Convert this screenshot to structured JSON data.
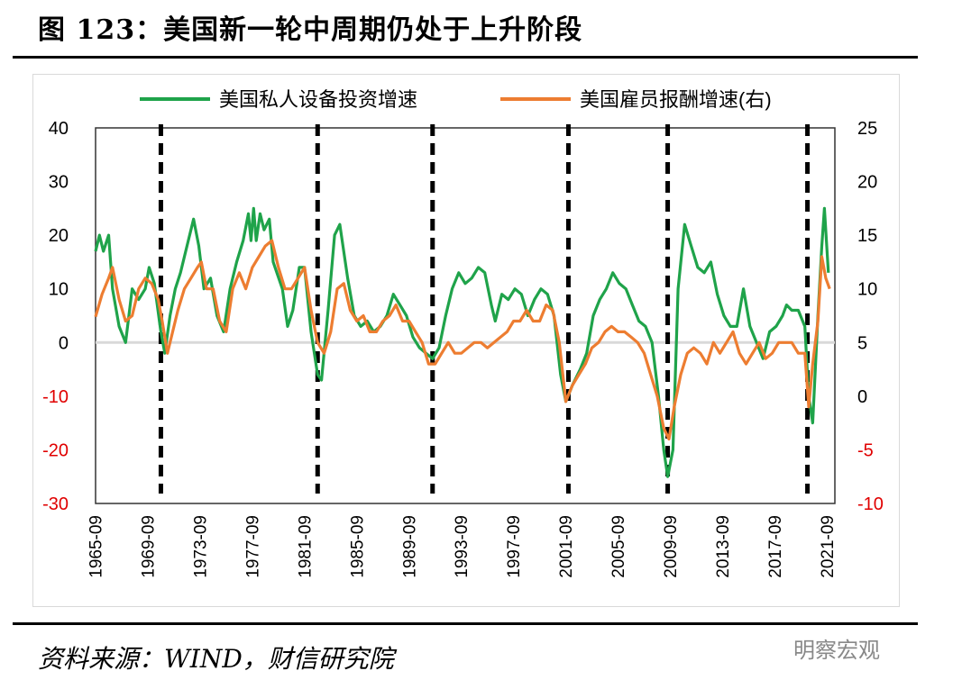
{
  "header": {
    "title": "图 123：美国新一轮中周期仍处于上升阶段"
  },
  "footer": {
    "source": "资料来源：WIND，财信研究院",
    "watermark": "明察宏观"
  },
  "chart_data": {
    "type": "line",
    "title": "图 123：美国新一轮中周期仍处于上升阶段",
    "x_range": [
      1965.7,
      2022.3
    ],
    "x_tick_labels": [
      "1965-09",
      "1969-09",
      "1973-09",
      "1977-09",
      "1981-09",
      "1985-09",
      "1989-09",
      "1993-09",
      "1997-09",
      "2001-09",
      "2005-09",
      "2009-09",
      "2013-09",
      "2017-09",
      "2021-09"
    ],
    "y_left": {
      "range": [
        -30,
        40
      ],
      "ticks": [
        40,
        30,
        20,
        10,
        0,
        -10,
        -20,
        -30
      ]
    },
    "y_right": {
      "range": [
        -10,
        25
      ],
      "ticks": [
        25,
        20,
        15,
        10,
        5,
        0,
        -5,
        -10
      ]
    },
    "cycle_markers": [
      1970.7,
      1982.7,
      1991.5,
      2001.9,
      2009.5,
      2020.2
    ],
    "legend_position": "top",
    "colors": {
      "equipment": "#1fa34a",
      "compensation": "#ed7d31",
      "dashed": "#000000",
      "zero_line": "#d9d9d9"
    },
    "series": [
      {
        "name": "美国私人设备投资增速",
        "axis": "left",
        "color": "#1fa34a",
        "points": [
          [
            1965.7,
            17
          ],
          [
            1966.0,
            20
          ],
          [
            1966.3,
            17
          ],
          [
            1966.7,
            20
          ],
          [
            1967.0,
            10
          ],
          [
            1967.5,
            3
          ],
          [
            1968.0,
            0
          ],
          [
            1968.5,
            10
          ],
          [
            1969.0,
            8
          ],
          [
            1969.5,
            10
          ],
          [
            1969.8,
            14
          ],
          [
            1970.2,
            11
          ],
          [
            1970.7,
            2
          ],
          [
            1971.0,
            -2
          ],
          [
            1971.4,
            5
          ],
          [
            1971.8,
            10
          ],
          [
            1972.2,
            13
          ],
          [
            1972.7,
            18
          ],
          [
            1973.2,
            23
          ],
          [
            1973.6,
            18
          ],
          [
            1974.0,
            10
          ],
          [
            1974.5,
            12
          ],
          [
            1975.0,
            5
          ],
          [
            1975.5,
            2
          ],
          [
            1976.0,
            10
          ],
          [
            1976.5,
            15
          ],
          [
            1977.0,
            19
          ],
          [
            1977.4,
            24
          ],
          [
            1977.6,
            19
          ],
          [
            1977.8,
            25
          ],
          [
            1978.0,
            19
          ],
          [
            1978.3,
            24
          ],
          [
            1978.6,
            21
          ],
          [
            1979.0,
            23
          ],
          [
            1979.3,
            15
          ],
          [
            1980.0,
            10
          ],
          [
            1980.4,
            3
          ],
          [
            1980.8,
            6
          ],
          [
            1981.3,
            14
          ],
          [
            1981.7,
            14
          ],
          [
            1982.2,
            2
          ],
          [
            1982.7,
            -6
          ],
          [
            1983.0,
            -7
          ],
          [
            1983.5,
            6
          ],
          [
            1984.0,
            20
          ],
          [
            1984.4,
            22
          ],
          [
            1985.0,
            12
          ],
          [
            1985.5,
            5
          ],
          [
            1986.0,
            3
          ],
          [
            1986.5,
            4
          ],
          [
            1987.0,
            2
          ],
          [
            1987.5,
            3
          ],
          [
            1988.0,
            5
          ],
          [
            1988.5,
            9
          ],
          [
            1989.0,
            7
          ],
          [
            1989.5,
            5
          ],
          [
            1990.0,
            1
          ],
          [
            1990.5,
            -1
          ],
          [
            1991.0,
            -2
          ],
          [
            1991.5,
            -3
          ],
          [
            1992.0,
            -1
          ],
          [
            1992.5,
            5
          ],
          [
            1993.0,
            10
          ],
          [
            1993.5,
            13
          ],
          [
            1994.0,
            11
          ],
          [
            1994.5,
            12
          ],
          [
            1995.0,
            14
          ],
          [
            1995.5,
            13
          ],
          [
            1996.0,
            7
          ],
          [
            1996.3,
            4
          ],
          [
            1996.8,
            9
          ],
          [
            1997.3,
            8
          ],
          [
            1997.8,
            10
          ],
          [
            1998.3,
            9
          ],
          [
            1998.8,
            5
          ],
          [
            1999.3,
            8
          ],
          [
            1999.8,
            10
          ],
          [
            2000.3,
            9
          ],
          [
            2000.8,
            5
          ],
          [
            2001.3,
            -6
          ],
          [
            2001.7,
            -11
          ],
          [
            2002.2,
            -8
          ],
          [
            2002.8,
            -5
          ],
          [
            2003.3,
            -2
          ],
          [
            2003.8,
            5
          ],
          [
            2004.3,
            8
          ],
          [
            2004.8,
            10
          ],
          [
            2005.3,
            13
          ],
          [
            2005.8,
            11
          ],
          [
            2006.3,
            10
          ],
          [
            2006.8,
            7
          ],
          [
            2007.3,
            4
          ],
          [
            2007.8,
            3
          ],
          [
            2008.3,
            0
          ],
          [
            2008.8,
            -10
          ],
          [
            2009.2,
            -20
          ],
          [
            2009.5,
            -25
          ],
          [
            2009.9,
            -20
          ],
          [
            2010.3,
            10
          ],
          [
            2010.8,
            22
          ],
          [
            2011.3,
            18
          ],
          [
            2011.8,
            14
          ],
          [
            2012.3,
            13
          ],
          [
            2012.8,
            15
          ],
          [
            2013.3,
            9
          ],
          [
            2013.8,
            5
          ],
          [
            2014.3,
            3
          ],
          [
            2014.8,
            3
          ],
          [
            2015.3,
            10
          ],
          [
            2015.8,
            3
          ],
          [
            2016.3,
            0
          ],
          [
            2016.8,
            -3
          ],
          [
            2017.3,
            2
          ],
          [
            2017.8,
            3
          ],
          [
            2018.3,
            5
          ],
          [
            2018.6,
            7
          ],
          [
            2019.0,
            6
          ],
          [
            2019.5,
            6
          ],
          [
            2020.0,
            3
          ],
          [
            2020.3,
            -10
          ],
          [
            2020.6,
            -15
          ],
          [
            2021.0,
            5
          ],
          [
            2021.3,
            18
          ],
          [
            2021.5,
            25
          ],
          [
            2021.8,
            13
          ]
        ]
      },
      {
        "name": "美国雇员报酬增速(右)",
        "axis": "right",
        "color": "#ed7d31",
        "points": [
          [
            1965.7,
            7.4
          ],
          [
            1966.2,
            9.5
          ],
          [
            1966.7,
            11
          ],
          [
            1967.0,
            12
          ],
          [
            1967.5,
            9
          ],
          [
            1968.0,
            7
          ],
          [
            1968.5,
            7.5
          ],
          [
            1969.0,
            10
          ],
          [
            1969.5,
            11
          ],
          [
            1970.0,
            10.5
          ],
          [
            1970.5,
            9
          ],
          [
            1970.8,
            7
          ],
          [
            1971.2,
            4
          ],
          [
            1971.6,
            6
          ],
          [
            1972.0,
            8
          ],
          [
            1972.5,
            10
          ],
          [
            1973.0,
            11
          ],
          [
            1973.5,
            12
          ],
          [
            1973.8,
            12.5
          ],
          [
            1974.2,
            10
          ],
          [
            1974.7,
            10
          ],
          [
            1975.2,
            7
          ],
          [
            1975.7,
            6
          ],
          [
            1976.2,
            10
          ],
          [
            1976.7,
            11.5
          ],
          [
            1977.2,
            10
          ],
          [
            1977.7,
            12
          ],
          [
            1978.2,
            13
          ],
          [
            1978.7,
            14
          ],
          [
            1979.2,
            14.5
          ],
          [
            1979.7,
            12
          ],
          [
            1980.2,
            10
          ],
          [
            1980.7,
            10
          ],
          [
            1981.2,
            11
          ],
          [
            1981.7,
            12
          ],
          [
            1982.2,
            8
          ],
          [
            1982.7,
            5
          ],
          [
            1983.2,
            4
          ],
          [
            1983.7,
            6
          ],
          [
            1984.2,
            10
          ],
          [
            1984.7,
            10.5
          ],
          [
            1985.2,
            8
          ],
          [
            1985.7,
            7
          ],
          [
            1986.2,
            7.5
          ],
          [
            1986.7,
            6
          ],
          [
            1987.2,
            6
          ],
          [
            1987.7,
            7
          ],
          [
            1988.2,
            7.5
          ],
          [
            1988.7,
            8.5
          ],
          [
            1989.2,
            7
          ],
          [
            1989.7,
            7
          ],
          [
            1990.2,
            6
          ],
          [
            1990.7,
            5
          ],
          [
            1991.2,
            3
          ],
          [
            1991.7,
            3
          ],
          [
            1992.2,
            4
          ],
          [
            1992.7,
            5
          ],
          [
            1993.2,
            4
          ],
          [
            1993.7,
            4
          ],
          [
            1994.2,
            4.5
          ],
          [
            1994.7,
            5
          ],
          [
            1995.2,
            5
          ],
          [
            1995.7,
            4.5
          ],
          [
            1996.2,
            5
          ],
          [
            1996.7,
            5.5
          ],
          [
            1997.2,
            6
          ],
          [
            1997.7,
            7
          ],
          [
            1998.2,
            7
          ],
          [
            1998.7,
            8
          ],
          [
            1999.2,
            7
          ],
          [
            1999.7,
            7
          ],
          [
            2000.2,
            8.5
          ],
          [
            2000.7,
            8
          ],
          [
            2001.2,
            5
          ],
          [
            2001.7,
            -0.5
          ],
          [
            2002.2,
            1
          ],
          [
            2002.7,
            2
          ],
          [
            2003.2,
            3
          ],
          [
            2003.7,
            4.5
          ],
          [
            2004.2,
            5
          ],
          [
            2004.7,
            6
          ],
          [
            2005.2,
            6.5
          ],
          [
            2005.7,
            6
          ],
          [
            2006.2,
            6
          ],
          [
            2006.7,
            5.5
          ],
          [
            2007.2,
            5
          ],
          [
            2007.7,
            4
          ],
          [
            2008.2,
            2
          ],
          [
            2008.7,
            0
          ],
          [
            2009.2,
            -3
          ],
          [
            2009.6,
            -4
          ],
          [
            2010.0,
            -1
          ],
          [
            2010.5,
            2
          ],
          [
            2011.0,
            4
          ],
          [
            2011.5,
            4.5
          ],
          [
            2012.0,
            4
          ],
          [
            2012.5,
            3
          ],
          [
            2013.0,
            5
          ],
          [
            2013.5,
            4
          ],
          [
            2014.0,
            5
          ],
          [
            2014.5,
            6
          ],
          [
            2015.0,
            4
          ],
          [
            2015.5,
            3
          ],
          [
            2016.0,
            4
          ],
          [
            2016.5,
            5
          ],
          [
            2017.0,
            3.5
          ],
          [
            2017.5,
            4
          ],
          [
            2018.0,
            5
          ],
          [
            2018.5,
            5
          ],
          [
            2019.0,
            5
          ],
          [
            2019.5,
            4
          ],
          [
            2020.0,
            4
          ],
          [
            2020.3,
            -1
          ],
          [
            2020.6,
            3
          ],
          [
            2021.0,
            7
          ],
          [
            2021.3,
            13
          ],
          [
            2021.6,
            11
          ],
          [
            2021.9,
            10
          ]
        ]
      }
    ]
  }
}
